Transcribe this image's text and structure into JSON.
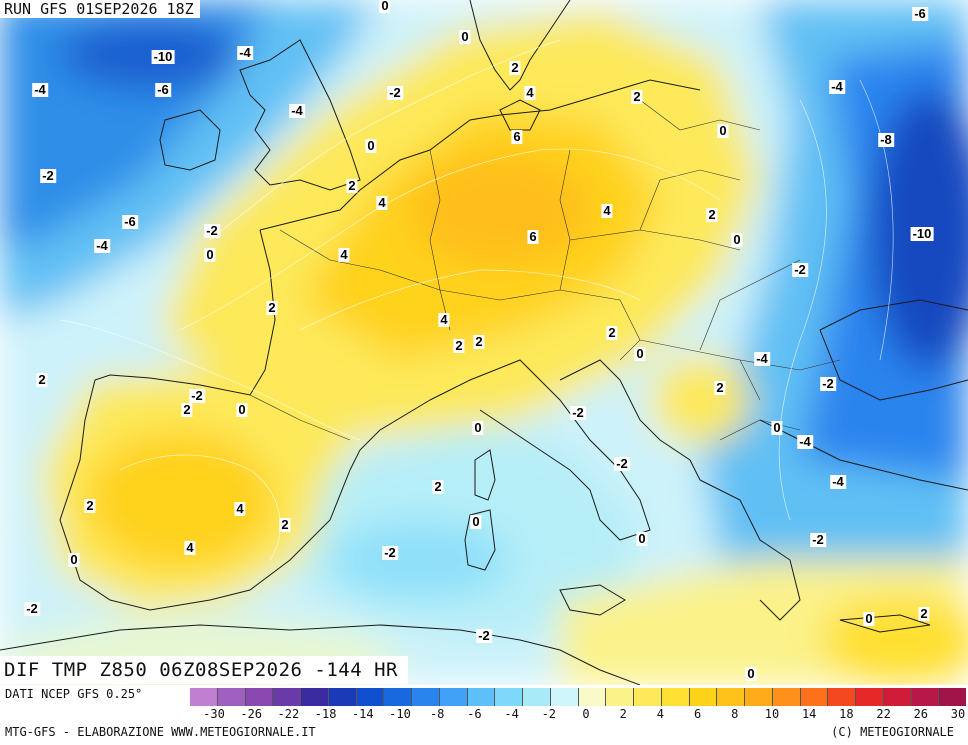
{
  "header": {
    "run": "RUN GFS 01SEP2026 18Z"
  },
  "field": {
    "label": "DIF TMP Z850 06Z08SEP2026 -144 HR"
  },
  "footer": {
    "source": "DATI NCEP GFS 0.25°",
    "credit": "MTG-GFS - ELABORAZIONE WWW.METEOGIORNALE.IT",
    "copyright": "(C) METEOGIORNALE"
  },
  "legend": {
    "colors": [
      "#c07fd0",
      "#a060c0",
      "#8a48b0",
      "#6a3aa8",
      "#3a2aa0",
      "#1a3ab8",
      "#1050d0",
      "#1868e0",
      "#2a84ee",
      "#40a0f6",
      "#5ec0fa",
      "#7ed8fa",
      "#a8eaf8",
      "#cff6fb",
      "#fafac8",
      "#fbf28a",
      "#fde95a",
      "#ffe030",
      "#ffd21a",
      "#ffc21a",
      "#ffab1a",
      "#ff901a",
      "#ff701a",
      "#f44820",
      "#e62828",
      "#d01c38",
      "#b81848",
      "#a0144a"
    ],
    "ticks": [
      "-30",
      "-26",
      "-22",
      "-18",
      "-14",
      "-10",
      "-8",
      "-6",
      "-4",
      "-2",
      "0",
      "2",
      "4",
      "6",
      "8",
      "10",
      "14",
      "18",
      "22",
      "26",
      "30"
    ]
  },
  "anomaly_labels": [
    {
      "value": "-6"
    },
    {
      "value": "0"
    },
    {
      "value": "-4"
    },
    {
      "value": "-10"
    },
    {
      "value": "0"
    },
    {
      "value": "2"
    },
    {
      "value": "-4"
    },
    {
      "value": "-6"
    },
    {
      "value": "4"
    },
    {
      "value": "-2"
    },
    {
      "value": "-4"
    },
    {
      "value": "-4"
    },
    {
      "value": "2"
    },
    {
      "value": "0"
    },
    {
      "value": "6"
    },
    {
      "value": "0"
    },
    {
      "value": "-8"
    },
    {
      "value": "-2"
    },
    {
      "value": "2"
    },
    {
      "value": "4"
    },
    {
      "value": "-6"
    },
    {
      "value": "4"
    },
    {
      "value": "2"
    },
    {
      "value": "-2"
    },
    {
      "value": "6"
    },
    {
      "value": "0"
    },
    {
      "value": "-10"
    },
    {
      "value": "-4"
    },
    {
      "value": "0"
    },
    {
      "value": "4"
    },
    {
      "value": "-2"
    },
    {
      "value": "2"
    },
    {
      "value": "4"
    },
    {
      "value": "2"
    },
    {
      "value": "2"
    },
    {
      "value": "2"
    },
    {
      "value": "0"
    },
    {
      "value": "-4"
    },
    {
      "value": "2"
    },
    {
      "value": "-2"
    },
    {
      "value": "-2"
    },
    {
      "value": "2"
    },
    {
      "value": "0"
    },
    {
      "value": "2"
    },
    {
      "value": "-2"
    },
    {
      "value": "0"
    },
    {
      "value": "0"
    },
    {
      "value": "-4"
    },
    {
      "value": "-2"
    },
    {
      "value": "-4"
    },
    {
      "value": "2"
    },
    {
      "value": "2"
    },
    {
      "value": "4"
    },
    {
      "value": "0"
    },
    {
      "value": "2"
    },
    {
      "value": "4"
    },
    {
      "value": "-2"
    },
    {
      "value": "0"
    },
    {
      "value": "0"
    },
    {
      "value": "-2"
    },
    {
      "value": "-2"
    },
    {
      "value": "0"
    },
    {
      "value": "2"
    },
    {
      "value": "-2"
    },
    {
      "value": "0"
    }
  ]
}
